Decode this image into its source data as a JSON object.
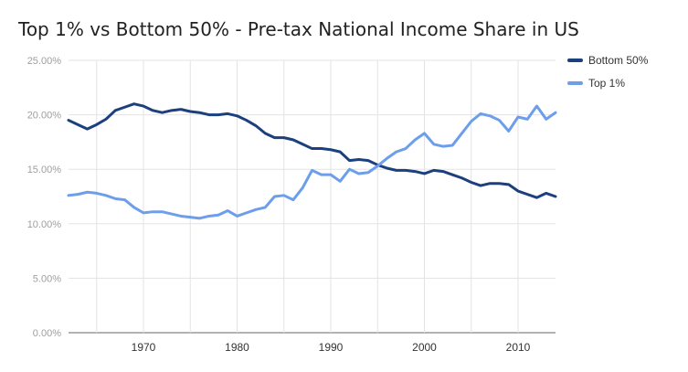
{
  "chart_data": {
    "type": "line",
    "title": "Top 1% vs Bottom 50% - Pre-tax National Income Share in US",
    "xlabel": "",
    "ylabel": "",
    "xlim": [
      1962,
      2014
    ],
    "ylim": [
      0,
      25
    ],
    "x_ticks": [
      1970,
      1980,
      1990,
      2000,
      2010
    ],
    "y_ticks": [
      0,
      5,
      10,
      15,
      20,
      25
    ],
    "y_tick_labels": [
      "0.00%",
      "5.00%",
      "10.00%",
      "15.00%",
      "20.00%",
      "25.00%"
    ],
    "grid": "both",
    "legend_position": "right",
    "x": [
      1962,
      1963,
      1964,
      1965,
      1966,
      1967,
      1968,
      1969,
      1970,
      1971,
      1972,
      1973,
      1974,
      1975,
      1976,
      1977,
      1978,
      1979,
      1980,
      1981,
      1982,
      1983,
      1984,
      1985,
      1986,
      1987,
      1988,
      1989,
      1990,
      1991,
      1992,
      1993,
      1994,
      1995,
      1996,
      1997,
      1998,
      1999,
      2000,
      2001,
      2002,
      2003,
      2004,
      2005,
      2006,
      2007,
      2008,
      2009,
      2010,
      2011,
      2012,
      2013,
      2014
    ],
    "series": [
      {
        "name": "Bottom 50%",
        "color": "#1c3f7e",
        "values": [
          19.5,
          19.1,
          18.7,
          19.1,
          19.6,
          20.4,
          20.7,
          21.0,
          20.8,
          20.4,
          20.2,
          20.4,
          20.5,
          20.3,
          20.2,
          20.0,
          20.0,
          20.1,
          19.9,
          19.5,
          19.0,
          18.3,
          17.9,
          17.9,
          17.7,
          17.3,
          16.9,
          16.9,
          16.8,
          16.6,
          15.8,
          15.9,
          15.8,
          15.4,
          15.1,
          14.9,
          14.9,
          14.8,
          14.6,
          14.9,
          14.8,
          14.5,
          14.2,
          13.8,
          13.5,
          13.7,
          13.7,
          13.6,
          13.0,
          12.7,
          12.4,
          12.8,
          12.5
        ]
      },
      {
        "name": "Top 1%",
        "color": "#6d9eeb",
        "values": [
          12.6,
          12.7,
          12.9,
          12.8,
          12.6,
          12.3,
          12.2,
          11.5,
          11.0,
          11.1,
          11.1,
          10.9,
          10.7,
          10.6,
          10.5,
          10.7,
          10.8,
          11.2,
          10.7,
          11.0,
          11.3,
          11.5,
          12.5,
          12.6,
          12.2,
          13.3,
          14.9,
          14.5,
          14.5,
          13.9,
          15.0,
          14.6,
          14.7,
          15.3,
          16.0,
          16.6,
          16.9,
          17.7,
          18.3,
          17.3,
          17.1,
          17.2,
          18.3,
          19.4,
          20.1,
          19.9,
          19.5,
          18.5,
          19.8,
          19.6,
          20.8,
          19.6,
          20.2
        ]
      }
    ]
  }
}
